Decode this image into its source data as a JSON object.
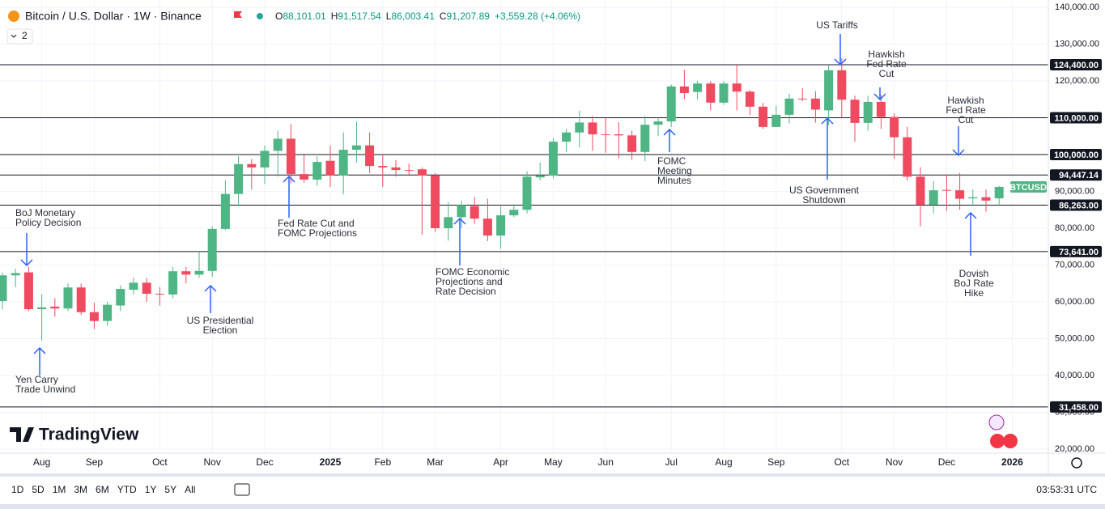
{
  "header": {
    "symbol": "Bitcoin / U.S. Dollar · 1W · Binance",
    "ohlc": [
      {
        "key": "O",
        "value": "88,101.01"
      },
      {
        "key": "H",
        "value": "91,517.54"
      },
      {
        "key": "L",
        "value": "86,003.41"
      },
      {
        "key": "C",
        "value": "91,207.89"
      }
    ],
    "change": "+3,559.28 (+4.06%)",
    "indicators": "2"
  },
  "toolbar": {
    "ranges": [
      "1D",
      "5D",
      "1M",
      "3M",
      "6M",
      "YTD",
      "1Y",
      "5Y",
      "All"
    ],
    "time": "03:53:31 UTC"
  },
  "logo": "TradingView",
  "chart_data": {
    "type": "candlestick",
    "up_color": "#4fb584",
    "down_color": "#ef4a60",
    "grid": true,
    "ylim": [
      20000,
      140000
    ],
    "yticks": [
      {
        "value": 20000,
        "label": "20,000.00"
      },
      {
        "value": 30000,
        "label": "30,000.00"
      },
      {
        "value": 40000,
        "label": "40,000.00"
      },
      {
        "value": 50000,
        "label": "50,000.00"
      },
      {
        "value": 60000,
        "label": "60,000.00"
      },
      {
        "value": 70000,
        "label": "70,000.00"
      },
      {
        "value": 80000,
        "label": "80,000.00"
      },
      {
        "value": 90000,
        "label": "90,000.00"
      },
      {
        "value": 100000,
        "label": "100,000.00"
      },
      {
        "value": 110000,
        "label": "110,000.00"
      },
      {
        "value": 120000,
        "label": "120,000.00"
      },
      {
        "value": 130000,
        "label": "130,000.00"
      },
      {
        "value": 140000,
        "label": "140,000.00"
      }
    ],
    "xticks": [
      {
        "value": 3,
        "label": "Aug"
      },
      {
        "value": 7,
        "label": "Sep"
      },
      {
        "value": 12,
        "label": "Oct"
      },
      {
        "value": 16,
        "label": "Nov"
      },
      {
        "value": 20,
        "label": "Dec"
      },
      {
        "value": 25,
        "label": "2025"
      },
      {
        "value": 29,
        "label": "Feb"
      },
      {
        "value": 33,
        "label": "Mar"
      },
      {
        "value": 38,
        "label": "Apr"
      },
      {
        "value": 42,
        "label": "May"
      },
      {
        "value": 46,
        "label": "Jun"
      },
      {
        "value": 51,
        "label": "Jul"
      },
      {
        "value": 55,
        "label": "Aug"
      },
      {
        "value": 59,
        "label": "Sep"
      },
      {
        "value": 64,
        "label": "Oct"
      },
      {
        "value": 68,
        "label": "Nov"
      },
      {
        "value": 72,
        "label": "Dec"
      },
      {
        "value": 77,
        "label": "2026"
      }
    ],
    "open": [
      60200,
      67200,
      68000,
      58000,
      58700,
      58200,
      63900,
      57200,
      54800,
      59000,
      63300,
      65200,
      62200,
      62000,
      68300,
      67400,
      68400,
      79800,
      89300,
      97400,
      96500,
      101000,
      104300,
      94700,
      93200,
      98300,
      94300,
      101300,
      102500,
      96900,
      96500,
      95800,
      96000,
      94300,
      80000,
      83000,
      86000,
      82600,
      78000,
      83500,
      85000,
      93800,
      94300,
      103500,
      106000,
      108700,
      105500,
      105500,
      105200,
      100700,
      108100,
      109000,
      118500,
      117000,
      119300,
      114100,
      119300,
      117100,
      113000,
      107500,
      110800,
      115200,
      115200,
      112000,
      122900,
      114900,
      108600,
      114300,
      110200,
      104700,
      94000,
      86400,
      90400,
      90300,
      88100,
      88400,
      88101.01
    ],
    "high": [
      68000,
      69000,
      69500,
      62000,
      61000,
      65000,
      65000,
      59800,
      60000,
      64500,
      66500,
      66500,
      64000,
      69500,
      69500,
      73500,
      80500,
      93000,
      99600,
      98800,
      102500,
      106500,
      108300,
      99900,
      99500,
      102500,
      106000,
      109000,
      106000,
      100000,
      98500,
      97500,
      96500,
      95000,
      87000,
      87500,
      88500,
      88000,
      86000,
      86500,
      95500,
      97800,
      104500,
      107000,
      111900,
      110500,
      110000,
      108800,
      106500,
      110500,
      110000,
      119000,
      123000,
      120000,
      120000,
      120000,
      124400,
      117500,
      114000,
      113300,
      116500,
      118000,
      117200,
      124200,
      126200,
      116000,
      116000,
      116200,
      111200,
      107500,
      96600,
      92800,
      94600,
      95000,
      90500,
      90500,
      91517.54
    ],
    "low": [
      58000,
      64000,
      57500,
      49500,
      56000,
      57500,
      56500,
      52600,
      53500,
      57500,
      62000,
      60000,
      59000,
      61000,
      65000,
      66500,
      66800,
      79500,
      86000,
      90500,
      92000,
      94000,
      92200,
      92400,
      91500,
      91200,
      89200,
      97800,
      95000,
      91200,
      94000,
      94500,
      78200,
      79000,
      76600,
      80000,
      81200,
      76500,
      74400,
      83000,
      84000,
      93000,
      93500,
      100700,
      102000,
      101000,
      100500,
      99000,
      98500,
      98200,
      105000,
      107500,
      115000,
      115000,
      112000,
      113500,
      112000,
      110700,
      107000,
      107500,
      108500,
      114500,
      108700,
      108000,
      110000,
      103500,
      106500,
      107000,
      98900,
      93000,
      80500,
      84000,
      84700,
      85000,
      86000,
      84500,
      86003.41
    ],
    "close": [
      67200,
      67800,
      58000,
      58500,
      58200,
      63900,
      57200,
      54800,
      59200,
      63500,
      65200,
      62200,
      62000,
      68300,
      67400,
      68400,
      79800,
      89300,
      97400,
      96500,
      101000,
      104300,
      94700,
      93200,
      98000,
      94300,
      101300,
      102500,
      96900,
      96500,
      95800,
      95600,
      94300,
      80000,
      83000,
      86300,
      82600,
      78000,
      83500,
      85000,
      94000,
      94300,
      103500,
      106000,
      108700,
      105500,
      105400,
      105200,
      100700,
      108100,
      109000,
      118500,
      116700,
      119300,
      114100,
      119300,
      117100,
      113000,
      107500,
      110800,
      115200,
      115000,
      112200,
      122900,
      114900,
      108600,
      114300,
      110200,
      104700,
      94000,
      86400,
      90300,
      90200,
      88000,
      88400,
      87500,
      91207.89
    ],
    "levels": [
      {
        "value": 124400,
        "label": "124,400.00"
      },
      {
        "value": 110000,
        "label": "110,000.00"
      },
      {
        "value": 100000,
        "label": "100,000.00"
      },
      {
        "value": 94447.14,
        "label": "94,447.14"
      },
      {
        "value": 86263,
        "label": "86,263.00"
      },
      {
        "value": 73641,
        "label": "73,641.00"
      },
      {
        "value": 31458,
        "label": "31,458.00"
      }
    ],
    "price_tag": "BTCUSD",
    "annotations": [
      {
        "lines": [
          "BoJ Monetary",
          "Policy Decision"
        ]
      },
      {
        "lines": [
          "Yen Carry",
          "Trade Unwind"
        ]
      },
      {
        "lines": [
          "US Presidential",
          "Election"
        ]
      },
      {
        "lines": [
          "Fed Rate Cut and",
          "FOMC Projections"
        ]
      },
      {
        "lines": [
          "FOMC Economic",
          "Projections and",
          "Rate Decision"
        ]
      },
      {
        "lines": [
          "FOMC",
          "Meeting",
          "Minutes"
        ]
      },
      {
        "lines": [
          "US Tariffs"
        ]
      },
      {
        "lines": [
          "US Government",
          "Shutdown"
        ]
      },
      {
        "lines": [
          "Hawkish",
          "Fed Rate",
          "Cut"
        ]
      },
      {
        "lines": [
          "Hawkish",
          "Fed Rate",
          "Cut"
        ]
      },
      {
        "lines": [
          "Dovish",
          "BoJ Rate",
          "Hike"
        ]
      }
    ]
  }
}
